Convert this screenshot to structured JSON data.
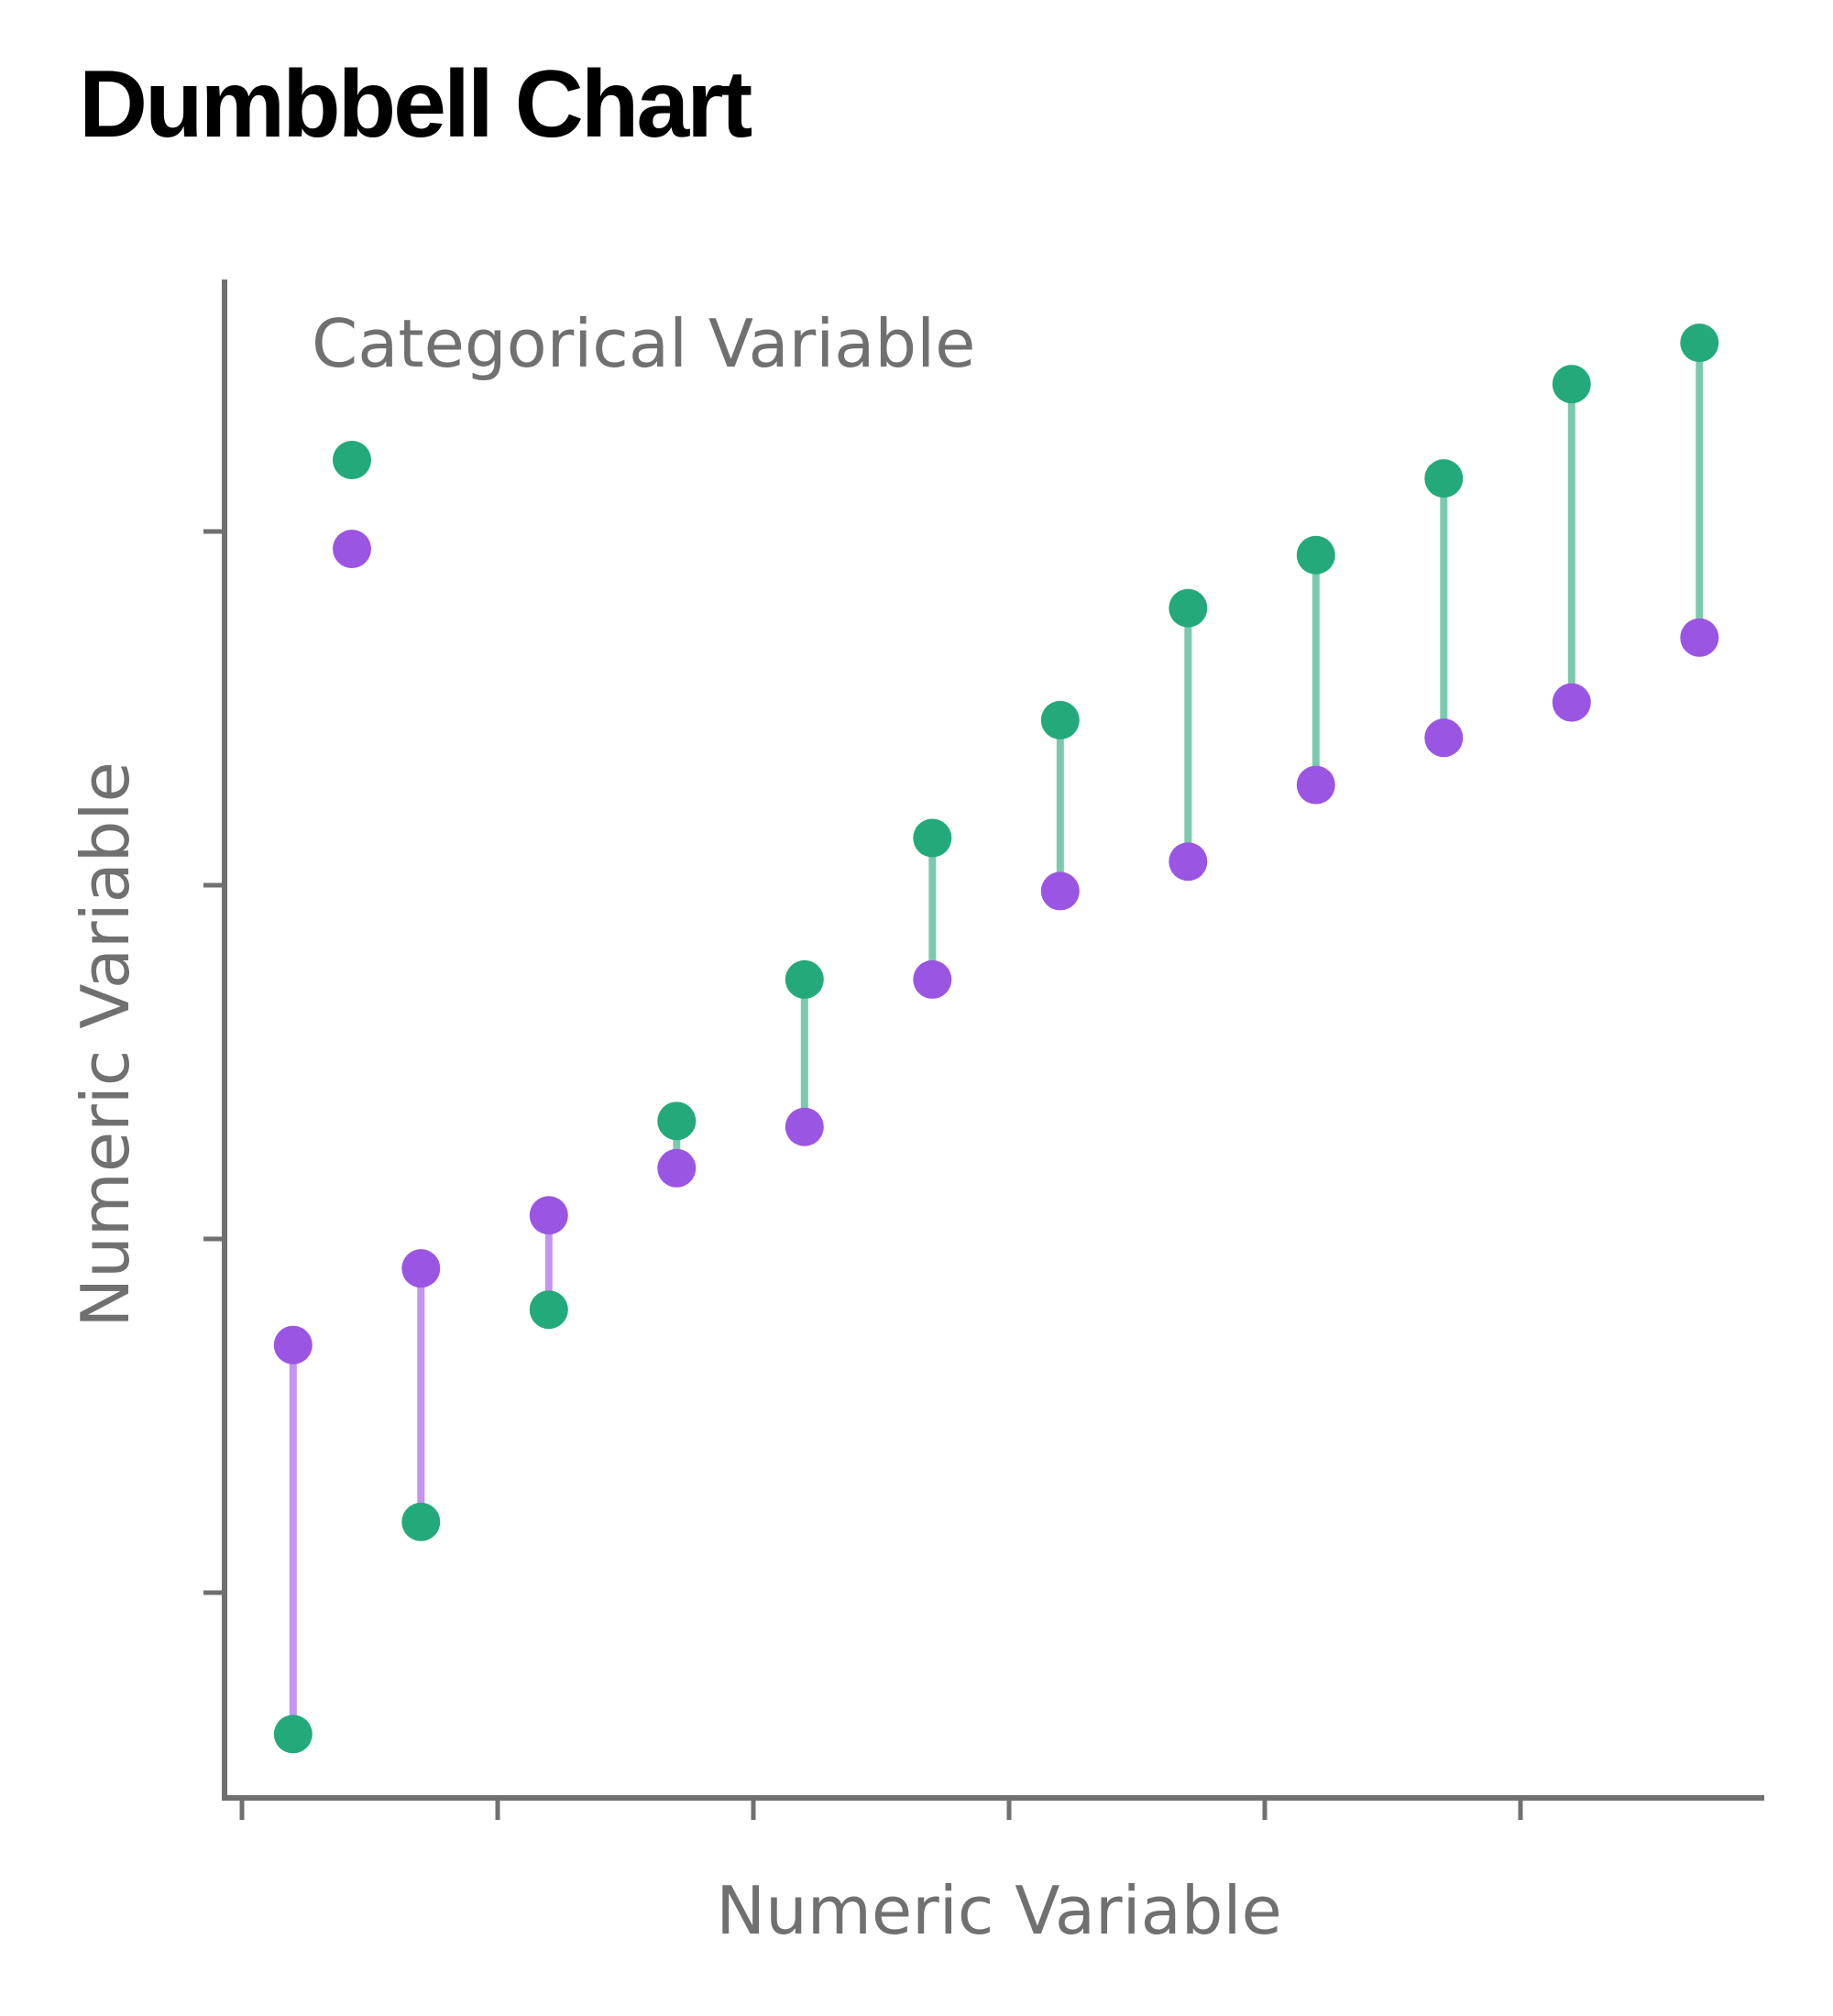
{
  "chart_data": {
    "type": "dumbbell",
    "title": "Dumbbell Chart",
    "xlabel": "Numeric Variable",
    "ylabel": "Numeric Variable",
    "legend": {
      "title": "Categorical Variable",
      "placement": "top-left",
      "entries": [
        {
          "color": "#24aa7a"
        },
        {
          "color": "#9b55e3"
        }
      ]
    },
    "colors": {
      "green": "#24aa7a",
      "purple": "#9b55e3",
      "green_line": "#7ccaae",
      "purple_line": "#c594f0",
      "axis": "#707070"
    },
    "xlim": [
      0,
      12
    ],
    "ylim": [
      0,
      11
    ],
    "x_ticks": [
      0,
      2,
      4,
      6,
      8,
      10
    ],
    "y_ticks": [
      1.5,
      4.5,
      7.5,
      10.5
    ],
    "grid": false,
    "series": [
      {
        "color": "green",
        "values": [
          0.3,
          2.1,
          3.9,
          5.5,
          6.7,
          7.9,
          8.9,
          9.85,
          10.3,
          10.95,
          11.75,
          12.1
        ]
      },
      {
        "color": "purple",
        "values": [
          3.6,
          4.25,
          4.7,
          5.1,
          5.45,
          6.7,
          7.45,
          7.7,
          8.35,
          8.75,
          9.05,
          9.6
        ]
      }
    ],
    "x": [
      0.4,
      1.4,
      2.4,
      3.4,
      4.4,
      5.4,
      6.4,
      7.4,
      8.4,
      9.4,
      10.4,
      11.4
    ]
  }
}
